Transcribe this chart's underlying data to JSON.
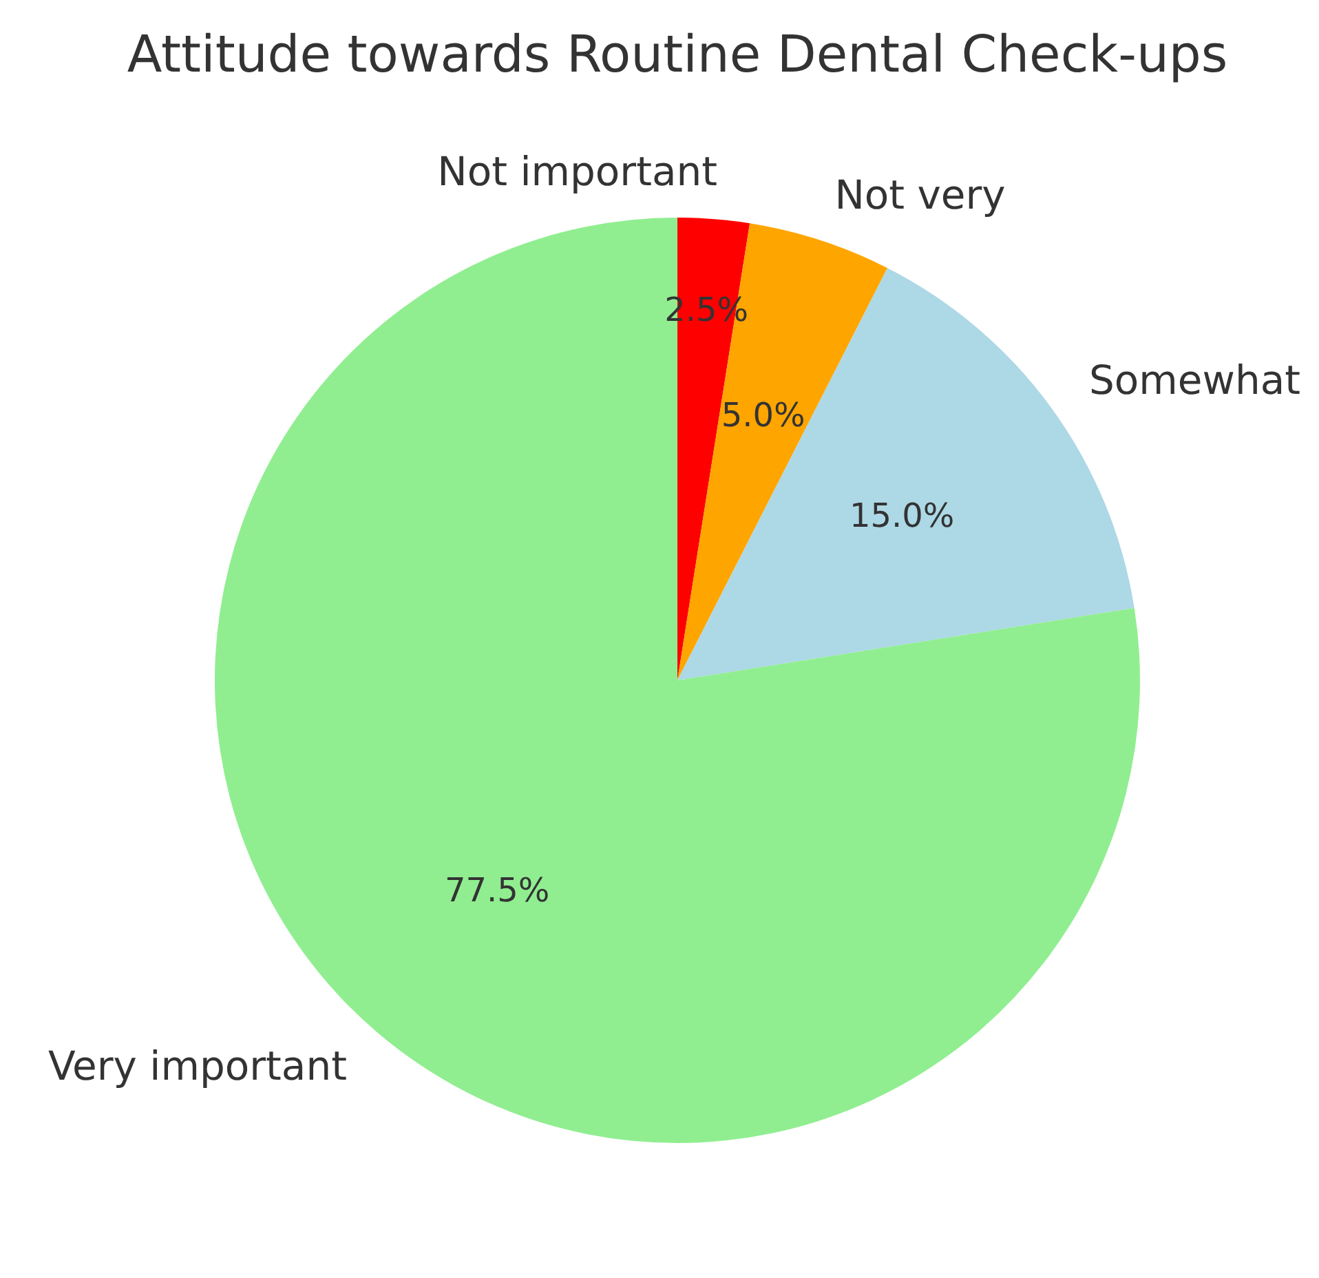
{
  "chart_data": {
    "type": "pie",
    "title": "Attitude towards Routine Dental Check-ups",
    "categories": [
      "Not important",
      "Not very",
      "Somewhat",
      "Very important"
    ],
    "values": [
      2.5,
      5.0,
      15.0,
      77.5
    ],
    "colors": [
      "#ff0000",
      "#ffa500",
      "#add8e6",
      "#90ee90"
    ],
    "value_labels": [
      "2.5%",
      "5.0%",
      "15.0%",
      "77.5%"
    ]
  }
}
